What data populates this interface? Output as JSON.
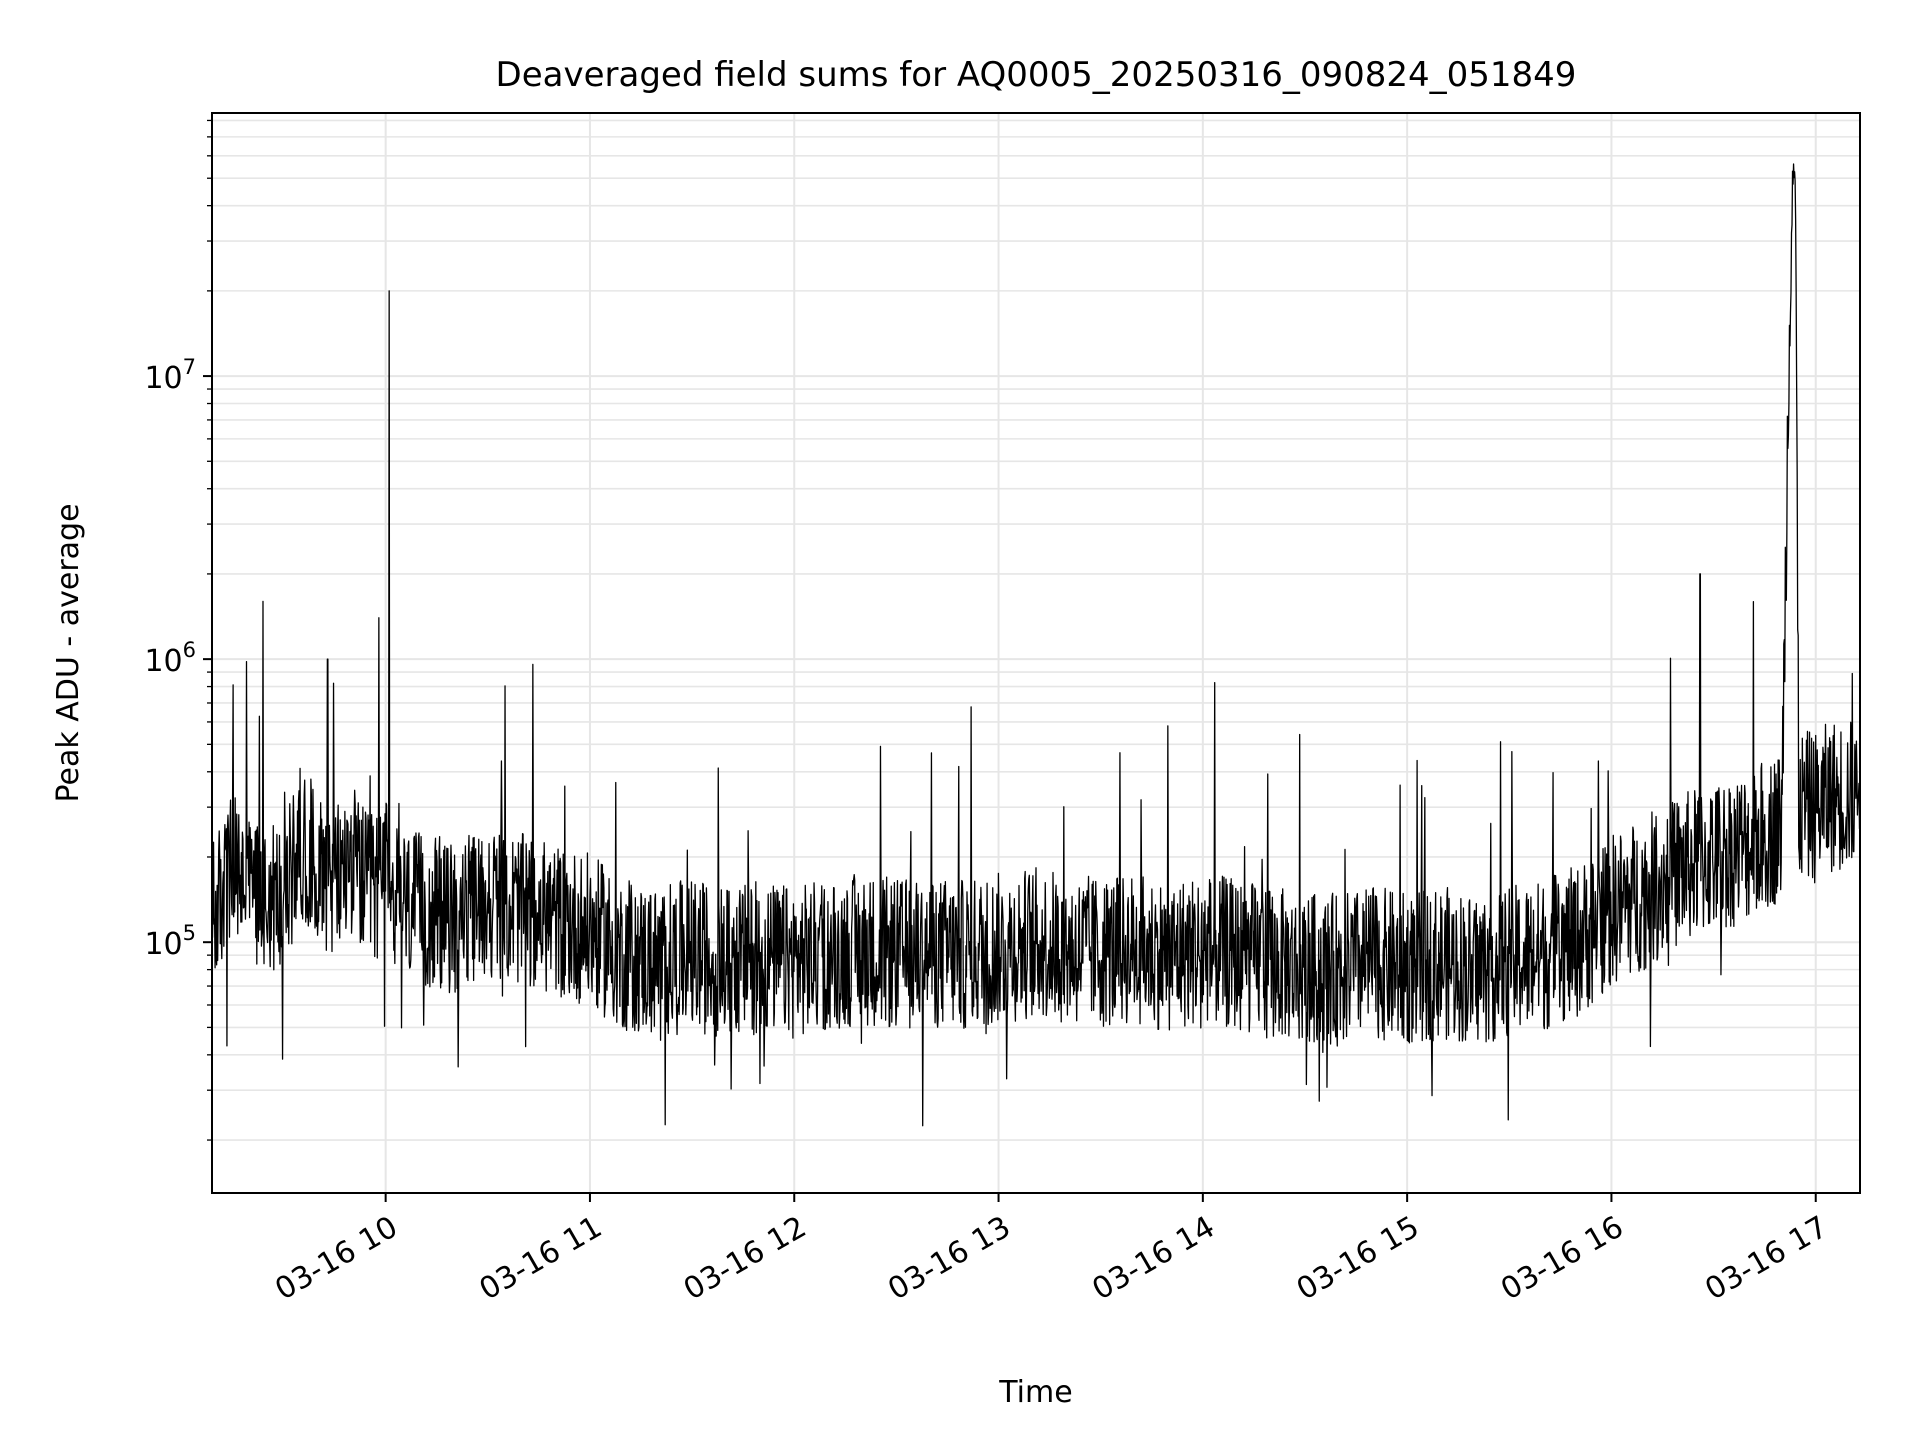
{
  "chart_data": {
    "type": "line",
    "title": "Deaveraged field sums for AQ0005_20250316_090824_051849",
    "xlabel": "Time",
    "ylabel": "Peak ADU - average",
    "x_scale": "time",
    "y_scale": "log",
    "xlim": [
      "03-16 09:09",
      "03-16 17:13"
    ],
    "ylim": [
      13000,
      85000000
    ],
    "grid": true,
    "x_tick_labels": [
      "03-16 10",
      "03-16 11",
      "03-16 12",
      "03-16 13",
      "03-16 14",
      "03-16 15",
      "03-16 16",
      "03-16 17"
    ],
    "y_tick_labels": [
      {
        "base": "10",
        "exp": "5"
      },
      {
        "base": "10",
        "exp": "6"
      },
      {
        "base": "10",
        "exp": "7"
      }
    ],
    "line_color": "#000000",
    "grid_color": "#e6e6e6",
    "series": [
      {
        "name": "",
        "points": [
          [
            "03-16 09:09",
            120000
          ],
          [
            "03-16 09:15",
            180000
          ],
          [
            "03-16 09:20",
            160000
          ],
          [
            "03-16 09:24",
            1600000
          ],
          [
            "03-16 09:25",
            150000
          ],
          [
            "03-16 09:30",
            140000
          ],
          [
            "03-16 09:35",
            230000
          ],
          [
            "03-16 09:40",
            190000
          ],
          [
            "03-16 09:43",
            1000000
          ],
          [
            "03-16 09:45",
            160000
          ],
          [
            "03-16 09:50",
            200000
          ],
          [
            "03-16 09:55",
            150000
          ],
          [
            "03-16 09:58",
            1400000
          ],
          [
            "03-16 10:00",
            170000
          ],
          [
            "03-16 10:01",
            20000000
          ],
          [
            "03-16 10:03",
            140000
          ],
          [
            "03-16 10:10",
            130000
          ],
          [
            "03-16 10:20",
            120000
          ],
          [
            "03-16 10:30",
            140000
          ],
          [
            "03-16 10:40",
            130000
          ],
          [
            "03-16 10:50",
            120000
          ],
          [
            "03-16 11:00",
            110000
          ],
          [
            "03-16 11:10",
            90000
          ],
          [
            "03-16 11:20",
            85000
          ],
          [
            "03-16 11:30",
            90000
          ],
          [
            "03-16 11:40",
            85000
          ],
          [
            "03-16 11:50",
            88000
          ],
          [
            "03-16 12:00",
            85000
          ],
          [
            "03-16 12:10",
            90000
          ],
          [
            "03-16 12:20",
            95000
          ],
          [
            "03-16 12:30",
            90000
          ],
          [
            "03-16 12:40",
            92000
          ],
          [
            "03-16 12:50",
            90000
          ],
          [
            "03-16 13:00",
            95000
          ],
          [
            "03-16 13:10",
            100000
          ],
          [
            "03-16 13:20",
            95000
          ],
          [
            "03-16 13:30",
            92000
          ],
          [
            "03-16 13:40",
            95000
          ],
          [
            "03-16 13:50",
            90000
          ],
          [
            "03-16 14:00",
            95000
          ],
          [
            "03-16 14:10",
            90000
          ],
          [
            "03-16 14:20",
            85000
          ],
          [
            "03-16 14:30",
            80000
          ],
          [
            "03-16 14:40",
            80000
          ],
          [
            "03-16 14:50",
            85000
          ],
          [
            "03-16 15:00",
            80000
          ],
          [
            "03-16 15:10",
            85000
          ],
          [
            "03-16 15:20",
            80000
          ],
          [
            "03-16 15:30",
            85000
          ],
          [
            "03-16 15:40",
            90000
          ],
          [
            "03-16 15:50",
            100000
          ],
          [
            "03-16 16:00",
            130000
          ],
          [
            "03-16 16:10",
            150000
          ],
          [
            "03-16 16:20",
            180000
          ],
          [
            "03-16 16:26",
            2000000
          ],
          [
            "03-16 16:30",
            200000
          ],
          [
            "03-16 16:40",
            220000
          ],
          [
            "03-16 16:50",
            260000
          ],
          [
            "03-16 16:53",
            55000000
          ],
          [
            "03-16 16:54",
            52000000
          ],
          [
            "03-16 16:55",
            300000
          ],
          [
            "03-16 17:00",
            300000
          ],
          [
            "03-16 17:05",
            330000
          ],
          [
            "03-16 17:13",
            330000
          ]
        ]
      }
    ]
  }
}
